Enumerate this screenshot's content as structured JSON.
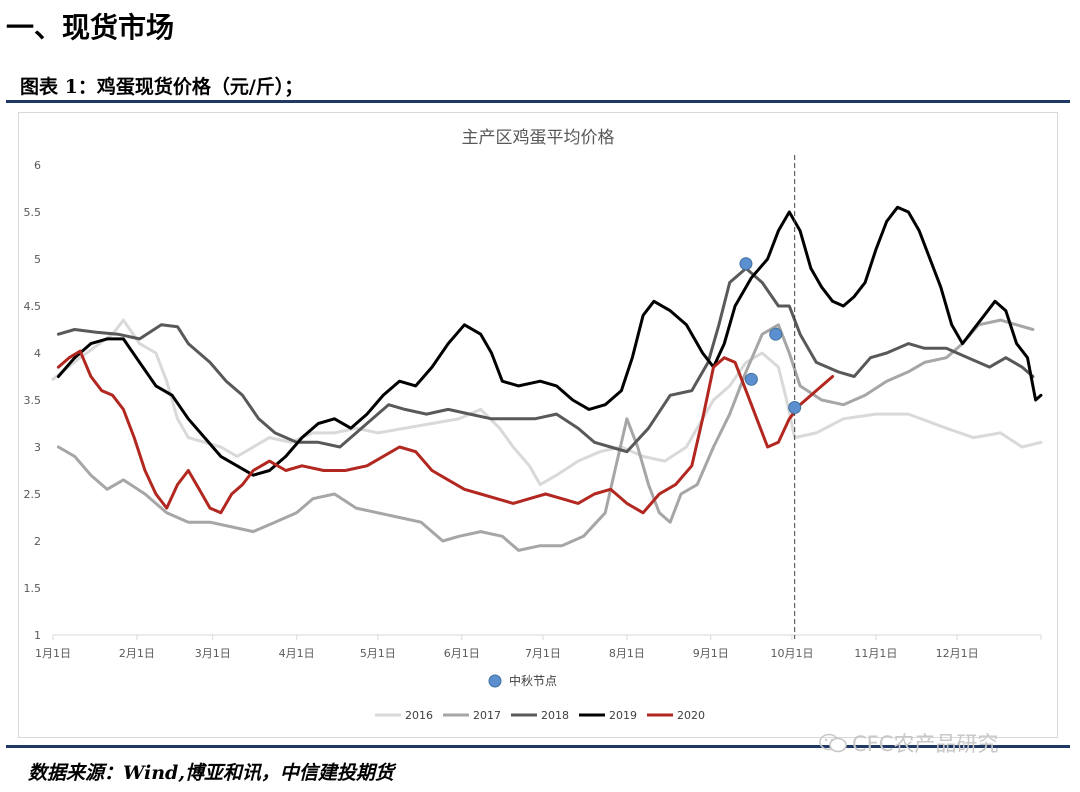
{
  "page": {
    "section_title": "一、现货市场",
    "figure_caption": "图表 1：鸡蛋现货价格（元/斤）；",
    "source": "数据来源：Wind,博亚和讯，中信建投期货",
    "watermark": "CFC农产品研究"
  },
  "chart_data": {
    "type": "line",
    "title": "主产区鸡蛋平均价格",
    "xlabel": "",
    "ylabel": "",
    "ylim": [
      1,
      6
    ],
    "yticks": [
      "1",
      "1.5",
      "2",
      "2.5",
      "3",
      "3.5",
      "4",
      "4.5",
      "5",
      "5.5",
      "6"
    ],
    "xticks": [
      "1月1日",
      "2月1日",
      "3月1日",
      "4月1日",
      "5月1日",
      "6月1日",
      "7月1日",
      "8月1日",
      "9月1日",
      "10月1日",
      "11月1日",
      "12月1日"
    ],
    "xlim_day": [
      0,
      365
    ],
    "reference_line_day": 274,
    "grid": false,
    "legend_position": "bottom",
    "colors": {
      "2016": "#d9d9d9",
      "2017": "#a6a6a6",
      "2018": "#595959",
      "2019": "#000000",
      "2020": "#b2271f",
      "mid_autumn": "#5b8fcf"
    },
    "series": [
      {
        "name": "2016",
        "color": "#d9d9d9",
        "points": [
          [
            0,
            3.72
          ],
          [
            10,
            3.95
          ],
          [
            22,
            4.2
          ],
          [
            26,
            4.35
          ],
          [
            32,
            4.1
          ],
          [
            38,
            4.0
          ],
          [
            42,
            3.7
          ],
          [
            46,
            3.3
          ],
          [
            50,
            3.1
          ],
          [
            56,
            3.05
          ],
          [
            62,
            3.0
          ],
          [
            68,
            2.9
          ],
          [
            74,
            3.0
          ],
          [
            80,
            3.1
          ],
          [
            88,
            3.05
          ],
          [
            96,
            3.15
          ],
          [
            104,
            3.15
          ],
          [
            112,
            3.2
          ],
          [
            120,
            3.15
          ],
          [
            130,
            3.2
          ],
          [
            140,
            3.25
          ],
          [
            150,
            3.3
          ],
          [
            158,
            3.4
          ],
          [
            165,
            3.2
          ],
          [
            170,
            3.0
          ],
          [
            176,
            2.8
          ],
          [
            180,
            2.6
          ],
          [
            186,
            2.7
          ],
          [
            194,
            2.85
          ],
          [
            202,
            2.95
          ],
          [
            210,
            3.0
          ],
          [
            218,
            2.9
          ],
          [
            226,
            2.85
          ],
          [
            234,
            3.0
          ],
          [
            240,
            3.3
          ],
          [
            244,
            3.5
          ],
          [
            250,
            3.65
          ],
          [
            256,
            3.9
          ],
          [
            262,
            4.0
          ],
          [
            268,
            3.85
          ],
          [
            271,
            3.5
          ],
          [
            274,
            3.1
          ],
          [
            282,
            3.15
          ],
          [
            292,
            3.3
          ],
          [
            304,
            3.35
          ],
          [
            316,
            3.35
          ],
          [
            330,
            3.2
          ],
          [
            340,
            3.1
          ],
          [
            350,
            3.15
          ],
          [
            358,
            3.0
          ],
          [
            365,
            3.05
          ]
        ]
      },
      {
        "name": "2017",
        "color": "#a6a6a6",
        "points": [
          [
            2,
            3.0
          ],
          [
            8,
            2.9
          ],
          [
            14,
            2.7
          ],
          [
            20,
            2.55
          ],
          [
            26,
            2.65
          ],
          [
            34,
            2.5
          ],
          [
            42,
            2.3
          ],
          [
            50,
            2.2
          ],
          [
            58,
            2.2
          ],
          [
            66,
            2.15
          ],
          [
            74,
            2.1
          ],
          [
            82,
            2.2
          ],
          [
            90,
            2.3
          ],
          [
            96,
            2.45
          ],
          [
            104,
            2.5
          ],
          [
            112,
            2.35
          ],
          [
            120,
            2.3
          ],
          [
            128,
            2.25
          ],
          [
            136,
            2.2
          ],
          [
            144,
            2.0
          ],
          [
            150,
            2.05
          ],
          [
            158,
            2.1
          ],
          [
            166,
            2.05
          ],
          [
            172,
            1.9
          ],
          [
            180,
            1.95
          ],
          [
            188,
            1.95
          ],
          [
            196,
            2.05
          ],
          [
            204,
            2.3
          ],
          [
            208,
            2.8
          ],
          [
            212,
            3.3
          ],
          [
            216,
            3.0
          ],
          [
            220,
            2.6
          ],
          [
            224,
            2.3
          ],
          [
            228,
            2.2
          ],
          [
            232,
            2.5
          ],
          [
            238,
            2.6
          ],
          [
            244,
            3.0
          ],
          [
            250,
            3.35
          ],
          [
            256,
            3.8
          ],
          [
            262,
            4.2
          ],
          [
            268,
            4.3
          ],
          [
            272,
            4.0
          ],
          [
            276,
            3.65
          ],
          [
            284,
            3.5
          ],
          [
            292,
            3.45
          ],
          [
            300,
            3.55
          ],
          [
            308,
            3.7
          ],
          [
            316,
            3.8
          ],
          [
            322,
            3.9
          ],
          [
            330,
            3.95
          ],
          [
            336,
            4.1
          ],
          [
            342,
            4.3
          ],
          [
            350,
            4.35
          ],
          [
            356,
            4.3
          ],
          [
            362,
            4.25
          ]
        ]
      },
      {
        "name": "2018",
        "color": "#595959",
        "points": [
          [
            2,
            4.2
          ],
          [
            8,
            4.25
          ],
          [
            16,
            4.22
          ],
          [
            24,
            4.2
          ],
          [
            32,
            4.15
          ],
          [
            40,
            4.3
          ],
          [
            46,
            4.28
          ],
          [
            50,
            4.1
          ],
          [
            58,
            3.9
          ],
          [
            64,
            3.7
          ],
          [
            70,
            3.55
          ],
          [
            76,
            3.3
          ],
          [
            82,
            3.15
          ],
          [
            90,
            3.05
          ],
          [
            98,
            3.05
          ],
          [
            106,
            3.0
          ],
          [
            112,
            3.15
          ],
          [
            118,
            3.3
          ],
          [
            124,
            3.45
          ],
          [
            130,
            3.4
          ],
          [
            138,
            3.35
          ],
          [
            146,
            3.4
          ],
          [
            154,
            3.35
          ],
          [
            162,
            3.3
          ],
          [
            170,
            3.3
          ],
          [
            178,
            3.3
          ],
          [
            186,
            3.35
          ],
          [
            194,
            3.2
          ],
          [
            200,
            3.05
          ],
          [
            206,
            3.0
          ],
          [
            212,
            2.95
          ],
          [
            220,
            3.2
          ],
          [
            228,
            3.55
          ],
          [
            236,
            3.6
          ],
          [
            242,
            3.9
          ],
          [
            246,
            4.3
          ],
          [
            250,
            4.75
          ],
          [
            256,
            4.9
          ],
          [
            262,
            4.75
          ],
          [
            268,
            4.5
          ],
          [
            272,
            4.5
          ],
          [
            276,
            4.2
          ],
          [
            282,
            3.9
          ],
          [
            290,
            3.8
          ],
          [
            296,
            3.75
          ],
          [
            302,
            3.95
          ],
          [
            308,
            4.0
          ],
          [
            316,
            4.1
          ],
          [
            322,
            4.05
          ],
          [
            330,
            4.05
          ],
          [
            338,
            3.95
          ],
          [
            346,
            3.85
          ],
          [
            352,
            3.95
          ],
          [
            358,
            3.85
          ],
          [
            362,
            3.75
          ]
        ]
      },
      {
        "name": "2019",
        "color": "#000000",
        "points": [
          [
            2,
            3.75
          ],
          [
            8,
            3.95
          ],
          [
            14,
            4.1
          ],
          [
            20,
            4.15
          ],
          [
            26,
            4.15
          ],
          [
            32,
            3.9
          ],
          [
            38,
            3.65
          ],
          [
            44,
            3.55
          ],
          [
            50,
            3.3
          ],
          [
            56,
            3.1
          ],
          [
            62,
            2.9
          ],
          [
            68,
            2.8
          ],
          [
            74,
            2.7
          ],
          [
            80,
            2.75
          ],
          [
            86,
            2.9
          ],
          [
            92,
            3.1
          ],
          [
            98,
            3.25
          ],
          [
            104,
            3.3
          ],
          [
            110,
            3.2
          ],
          [
            116,
            3.35
          ],
          [
            122,
            3.55
          ],
          [
            128,
            3.7
          ],
          [
            134,
            3.65
          ],
          [
            140,
            3.85
          ],
          [
            146,
            4.1
          ],
          [
            152,
            4.3
          ],
          [
            158,
            4.2
          ],
          [
            162,
            4.0
          ],
          [
            166,
            3.7
          ],
          [
            172,
            3.65
          ],
          [
            180,
            3.7
          ],
          [
            186,
            3.65
          ],
          [
            192,
            3.5
          ],
          [
            198,
            3.4
          ],
          [
            204,
            3.45
          ],
          [
            210,
            3.6
          ],
          [
            214,
            3.95
          ],
          [
            218,
            4.4
          ],
          [
            222,
            4.55
          ],
          [
            228,
            4.45
          ],
          [
            234,
            4.3
          ],
          [
            240,
            4.0
          ],
          [
            244,
            3.85
          ],
          [
            248,
            4.1
          ],
          [
            252,
            4.5
          ],
          [
            258,
            4.8
          ],
          [
            264,
            5.0
          ],
          [
            268,
            5.3
          ],
          [
            272,
            5.5
          ],
          [
            276,
            5.3
          ],
          [
            280,
            4.9
          ],
          [
            284,
            4.7
          ],
          [
            288,
            4.55
          ],
          [
            292,
            4.5
          ],
          [
            296,
            4.6
          ],
          [
            300,
            4.75
          ],
          [
            304,
            5.1
          ],
          [
            308,
            5.4
          ],
          [
            312,
            5.55
          ],
          [
            316,
            5.5
          ],
          [
            320,
            5.3
          ],
          [
            324,
            5.0
          ],
          [
            328,
            4.7
          ],
          [
            332,
            4.3
          ],
          [
            336,
            4.1
          ],
          [
            340,
            4.25
          ],
          [
            344,
            4.4
          ],
          [
            348,
            4.55
          ],
          [
            352,
            4.45
          ],
          [
            356,
            4.1
          ],
          [
            360,
            3.95
          ],
          [
            363,
            3.5
          ],
          [
            365,
            3.55
          ]
        ]
      },
      {
        "name": "2020",
        "color": "#b2271f",
        "points": [
          [
            2,
            3.85
          ],
          [
            6,
            3.95
          ],
          [
            10,
            4.02
          ],
          [
            14,
            3.75
          ],
          [
            18,
            3.6
          ],
          [
            22,
            3.55
          ],
          [
            26,
            3.4
          ],
          [
            30,
            3.1
          ],
          [
            34,
            2.75
          ],
          [
            38,
            2.5
          ],
          [
            42,
            2.35
          ],
          [
            46,
            2.6
          ],
          [
            50,
            2.75
          ],
          [
            54,
            2.55
          ],
          [
            58,
            2.35
          ],
          [
            62,
            2.3
          ],
          [
            66,
            2.5
          ],
          [
            70,
            2.6
          ],
          [
            74,
            2.75
          ],
          [
            80,
            2.85
          ],
          [
            86,
            2.75
          ],
          [
            92,
            2.8
          ],
          [
            100,
            2.75
          ],
          [
            108,
            2.75
          ],
          [
            116,
            2.8
          ],
          [
            122,
            2.9
          ],
          [
            128,
            3.0
          ],
          [
            134,
            2.95
          ],
          [
            140,
            2.75
          ],
          [
            146,
            2.65
          ],
          [
            152,
            2.55
          ],
          [
            158,
            2.5
          ],
          [
            164,
            2.45
          ],
          [
            170,
            2.4
          ],
          [
            176,
            2.45
          ],
          [
            182,
            2.5
          ],
          [
            188,
            2.45
          ],
          [
            194,
            2.4
          ],
          [
            200,
            2.5
          ],
          [
            206,
            2.55
          ],
          [
            212,
            2.4
          ],
          [
            218,
            2.3
          ],
          [
            224,
            2.5
          ],
          [
            230,
            2.6
          ],
          [
            236,
            2.8
          ],
          [
            240,
            3.3
          ],
          [
            244,
            3.85
          ],
          [
            248,
            3.95
          ],
          [
            252,
            3.9
          ],
          [
            256,
            3.6
          ],
          [
            260,
            3.3
          ],
          [
            264,
            3.0
          ],
          [
            268,
            3.05
          ],
          [
            272,
            3.3
          ],
          [
            276,
            3.45
          ],
          [
            282,
            3.6
          ],
          [
            288,
            3.75
          ]
        ]
      }
    ],
    "mid_autumn_points": [
      [
        256,
        4.95
      ],
      [
        258,
        3.72
      ],
      [
        267,
        4.2
      ],
      [
        274,
        3.42
      ]
    ],
    "mid_autumn_label": "中秋节点",
    "legend": [
      "2016",
      "2017",
      "2018",
      "2019",
      "2020"
    ]
  }
}
